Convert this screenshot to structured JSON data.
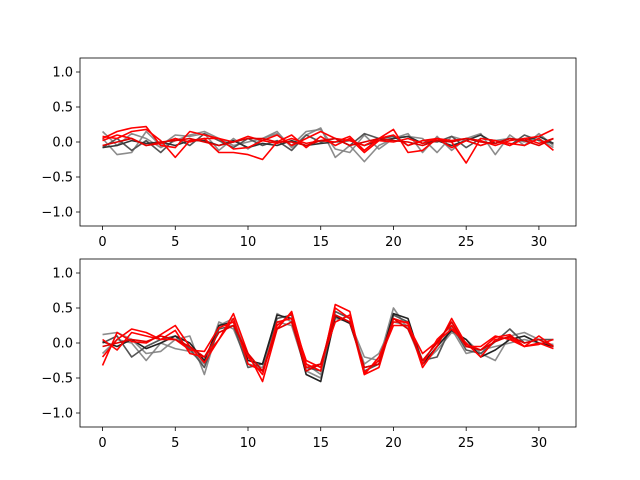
{
  "chart_data": [
    {
      "type": "line",
      "xlim": [
        -1.55,
        32.55
      ],
      "ylim": [
        -1.2,
        1.2
      ],
      "xticks": [
        0,
        5,
        10,
        15,
        20,
        25,
        30
      ],
      "yticks": [
        -1.0,
        -0.5,
        0.0,
        0.5,
        1.0
      ],
      "xtick_labels": [
        "0",
        "5",
        "10",
        "15",
        "20",
        "25",
        "30"
      ],
      "ytick_labels": [
        "−1.0",
        "−0.5",
        "0.0",
        "0.5",
        "1.0"
      ],
      "grid": false,
      "x": [
        0,
        1,
        2,
        3,
        4,
        5,
        6,
        7,
        8,
        9,
        10,
        11,
        12,
        13,
        14,
        15,
        16,
        17,
        18,
        19,
        20,
        21,
        22,
        23,
        24,
        25,
        26,
        27,
        28,
        29,
        30,
        31
      ],
      "series": [
        {
          "color": "#7f7f7f",
          "values": [
            0.15,
            -0.05,
            0.12,
            0.05,
            -0.08,
            0.02,
            0.1,
            0.15,
            0.05,
            -0.05,
            0.0,
            0.05,
            0.15,
            -0.08,
            0.1,
            0.2,
            -0.22,
            -0.05,
            -0.28,
            -0.05,
            0.05,
            0.12,
            -0.15,
            0.08,
            -0.12,
            0.05,
            0.12,
            -0.18,
            0.1,
            -0.05,
            0.12,
            -0.05
          ]
        },
        {
          "color": "#7f7f7f",
          "values": [
            0.05,
            -0.18,
            -0.15,
            0.15,
            -0.05,
            0.1,
            0.08,
            0.12,
            -0.12,
            0.05,
            -0.1,
            0.05,
            0.12,
            -0.05,
            0.15,
            0.18,
            -0.1,
            -0.15,
            0.1,
            -0.1,
            0.05,
            0.08,
            0.05,
            -0.15,
            0.08,
            0.02,
            -0.05,
            0.02,
            0.05,
            0.0,
            0.05,
            -0.08
          ]
        },
        {
          "color": "#555555",
          "values": [
            -0.08,
            0.05,
            -0.12,
            0.02,
            -0.15,
            0.05,
            -0.05,
            0.12,
            0.02,
            -0.08,
            0.05,
            -0.05,
            0.02,
            -0.12,
            0.1,
            0.0,
            0.05,
            -0.05,
            0.12,
            0.05,
            0.08,
            -0.05,
            0.02,
            0.0,
            0.08,
            -0.08,
            0.05,
            0.02,
            -0.05,
            0.1,
            0.02,
            -0.02
          ]
        },
        {
          "color": "#333333",
          "values": [
            -0.08,
            -0.05,
            0.02,
            -0.02,
            0.0,
            -0.05,
            0.02,
            0.02,
            -0.05,
            0.02,
            -0.08,
            -0.02,
            -0.05,
            0.02,
            -0.05,
            -0.02,
            0.0,
            0.02,
            -0.05,
            0.02,
            0.05,
            0.08,
            -0.02,
            0.02,
            -0.05,
            0.02,
            0.1,
            -0.02,
            0.05,
            0.02,
            0.08,
            -0.02
          ]
        },
        {
          "color": "#ff0000",
          "values": [
            0.05,
            0.15,
            0.2,
            0.22,
            -0.05,
            -0.08,
            0.15,
            0.1,
            0.05,
            -0.1,
            -0.08,
            0.02,
            0.1,
            -0.05,
            0.05,
            0.15,
            0.05,
            0.02,
            -0.05,
            0.05,
            0.18,
            -0.15,
            -0.12,
            0.05,
            0.02,
            0.05,
            0.02,
            -0.05,
            0.02,
            0.05,
            0.08,
            0.18
          ]
        },
        {
          "color": "#ff0000",
          "values": [
            0.08,
            0.05,
            0.15,
            0.18,
            0.02,
            -0.22,
            0.02,
            0.05,
            -0.15,
            -0.15,
            -0.18,
            -0.25,
            0.0,
            0.1,
            -0.08,
            0.08,
            -0.05,
            0.05,
            -0.15,
            0.02,
            0.0,
            0.05,
            -0.02,
            0.05,
            0.0,
            -0.3,
            0.05,
            0.02,
            -0.02,
            -0.05,
            0.05,
            -0.12
          ]
        },
        {
          "color": "#ff0000",
          "values": [
            0.02,
            0.1,
            0.05,
            -0.05,
            -0.02,
            0.05,
            0.0,
            0.05,
            0.05,
            0.0,
            0.08,
            0.02,
            -0.02,
            0.05,
            -0.02,
            0.02,
            0.0,
            0.08,
            -0.12,
            0.05,
            0.1,
            -0.05,
            0.02,
            0.05,
            -0.08,
            0.02,
            -0.05,
            0.02,
            -0.05,
            0.05,
            -0.02,
            0.05
          ]
        },
        {
          "color": "#e00000",
          "values": [
            -0.05,
            0.0,
            0.05,
            -0.05,
            0.0,
            0.02,
            0.05,
            0.0,
            -0.05,
            0.0,
            0.05,
            0.05,
            0.0,
            0.0,
            -0.05,
            0.02,
            0.05,
            -0.05,
            0.0,
            0.05,
            0.02,
            0.0,
            -0.05,
            0.02,
            0.0,
            0.05,
            0.0,
            -0.02,
            0.05,
            0.02,
            -0.05,
            0.05
          ]
        }
      ]
    },
    {
      "type": "line",
      "xlim": [
        -1.55,
        32.55
      ],
      "ylim": [
        -1.2,
        1.2
      ],
      "xticks": [
        0,
        5,
        10,
        15,
        20,
        25,
        30
      ],
      "yticks": [
        -1.0,
        -0.5,
        0.0,
        0.5,
        1.0
      ],
      "xtick_labels": [
        "0",
        "5",
        "10",
        "15",
        "20",
        "25",
        "30"
      ],
      "ytick_labels": [
        "−1.0",
        "−0.5",
        "0.0",
        "0.5",
        "1.0"
      ],
      "grid": false,
      "x": [
        0,
        1,
        2,
        3,
        4,
        5,
        6,
        7,
        8,
        9,
        10,
        11,
        12,
        13,
        14,
        15,
        16,
        17,
        18,
        19,
        20,
        21,
        22,
        23,
        24,
        25,
        26,
        27,
        28,
        29,
        30,
        31
      ],
      "series": [
        {
          "color": "#7f7f7f",
          "values": [
            0.12,
            0.15,
            0.05,
            -0.15,
            -0.12,
            0.05,
            0.1,
            -0.45,
            0.25,
            0.35,
            -0.2,
            -0.4,
            0.3,
            0.25,
            -0.4,
            -0.5,
            0.4,
            0.3,
            -0.2,
            -0.25,
            0.5,
            0.2,
            -0.3,
            -0.1,
            0.15,
            0.05,
            -0.15,
            -0.25,
            0.1,
            0.15,
            0.05,
            -0.05
          ]
        },
        {
          "color": "#7f7f7f",
          "values": [
            -0.15,
            0.05,
            0.0,
            -0.25,
            0.0,
            -0.08,
            -0.12,
            -0.3,
            0.3,
            0.2,
            -0.3,
            -0.35,
            0.42,
            0.3,
            -0.3,
            -0.45,
            0.35,
            0.3,
            -0.3,
            -0.15,
            0.3,
            0.25,
            -0.3,
            -0.05,
            0.2,
            -0.15,
            -0.1,
            -0.05,
            0.0,
            0.05,
            0.0,
            -0.02
          ]
        },
        {
          "color": "#555555",
          "values": [
            0.0,
            0.1,
            -0.2,
            -0.05,
            0.05,
            0.1,
            -0.08,
            -0.35,
            0.2,
            0.25,
            -0.35,
            -0.3,
            0.35,
            0.4,
            -0.35,
            -0.4,
            0.45,
            0.35,
            -0.4,
            -0.3,
            0.4,
            0.3,
            -0.25,
            -0.2,
            0.25,
            -0.1,
            -0.15,
            0.02,
            0.2,
            0.0,
            0.05,
            0.05
          ]
        },
        {
          "color": "#222222",
          "values": [
            0.02,
            -0.05,
            0.05,
            -0.08,
            0.0,
            0.1,
            0.0,
            -0.25,
            0.25,
            0.3,
            -0.25,
            -0.3,
            0.4,
            0.35,
            -0.45,
            -0.55,
            0.38,
            0.28,
            -0.35,
            -0.3,
            0.42,
            0.35,
            -0.3,
            -0.05,
            0.18,
            0.05,
            -0.2,
            -0.1,
            0.05,
            0.1,
            0.0,
            -0.05
          ]
        },
        {
          "color": "#ff0000",
          "values": [
            -0.32,
            0.15,
            0.02,
            0.0,
            0.12,
            0.25,
            -0.05,
            -0.28,
            0.05,
            0.42,
            -0.15,
            -0.55,
            0.2,
            0.45,
            -0.3,
            -0.4,
            0.55,
            0.45,
            -0.45,
            -0.35,
            0.35,
            0.28,
            -0.35,
            -0.05,
            0.35,
            -0.02,
            -0.1,
            0.08,
            0.12,
            -0.05,
            0.1,
            -0.05
          ]
        },
        {
          "color": "#ff0000",
          "values": [
            -0.2,
            0.05,
            0.2,
            0.15,
            0.05,
            0.05,
            -0.1,
            -0.12,
            0.22,
            0.3,
            -0.2,
            -0.45,
            0.3,
            0.35,
            -0.25,
            -0.35,
            0.5,
            0.35,
            -0.45,
            -0.2,
            0.3,
            0.3,
            -0.3,
            0.05,
            0.25,
            -0.05,
            -0.05,
            0.1,
            0.05,
            -0.05,
            -0.02,
            0.05
          ]
        },
        {
          "color": "#ff0000",
          "values": [
            0.05,
            -0.1,
            0.15,
            0.1,
            0.05,
            0.18,
            -0.15,
            -0.2,
            0.05,
            0.35,
            -0.3,
            -0.4,
            0.25,
            0.42,
            -0.35,
            -0.3,
            0.3,
            0.4,
            -0.42,
            -0.25,
            0.25,
            0.25,
            -0.15,
            0.02,
            0.2,
            0.0,
            -0.2,
            0.05,
            0.08,
            -0.05,
            0.0,
            -0.08
          ]
        },
        {
          "color": "#e00000",
          "values": [
            -0.05,
            0.0,
            0.05,
            0.02,
            0.1,
            0.05,
            -0.05,
            -0.2,
            0.15,
            0.25,
            -0.15,
            -0.4,
            0.2,
            0.3,
            -0.4,
            -0.3,
            0.4,
            0.3,
            -0.35,
            -0.3,
            0.35,
            0.2,
            -0.25,
            0.0,
            0.3,
            -0.05,
            -0.1,
            0.02,
            0.1,
            0.0,
            0.05,
            -0.05
          ]
        }
      ]
    }
  ]
}
